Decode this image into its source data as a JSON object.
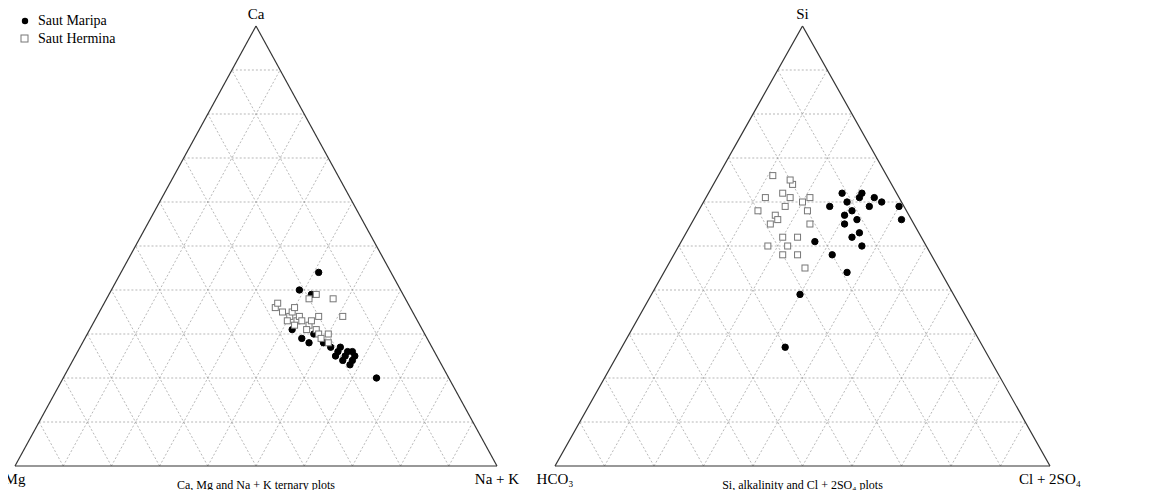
{
  "chart_data": [
    {
      "type": "ternary",
      "title": "Ca, Mg and Na + K ternary plots",
      "vertices": [
        "Ca",
        "Mg",
        "Na + K"
      ],
      "ticks": [
        0,
        10,
        20,
        30,
        40,
        50,
        60,
        70,
        80,
        90,
        100
      ],
      "grid": true,
      "tick_labels": false,
      "legend": "upper left",
      "series": [
        {
          "name": "Saut Maripa",
          "color": "#000000",
          "marker": "circle",
          "values": [
            [
              26,
              18,
              56
            ],
            [
              25,
              19,
              56
            ],
            [
              26,
              20,
              54
            ],
            [
              27,
              21,
              52
            ],
            [
              28,
              22,
              50
            ],
            [
              28,
              25,
              47
            ],
            [
              29,
              26,
              45
            ],
            [
              31,
              27,
              42
            ],
            [
              20,
              15,
              65
            ],
            [
              44,
              15,
              41
            ],
            [
              40,
              21,
              39
            ],
            [
              39,
              19,
              42
            ],
            [
              24,
              20,
              56
            ],
            [
              25,
              21,
              54
            ],
            [
              27,
              19,
              54
            ],
            [
              23,
              19,
              58
            ],
            [
              26,
              17,
              57
            ],
            [
              30,
              23,
              47
            ],
            [
              24,
              18,
              58
            ],
            [
              25,
              17,
              58
            ]
          ]
        },
        {
          "name": "Saut Hermina",
          "color": "#ffffff",
          "marker": "square",
          "values": [
            [
              34,
              26,
              40
            ],
            [
              33,
              25,
              42
            ],
            [
              32,
              23,
              45
            ],
            [
              35,
              27,
              38
            ],
            [
              36,
              28,
              36
            ],
            [
              34,
              24,
              42
            ],
            [
              33,
              22,
              45
            ],
            [
              31,
              22,
              47
            ],
            [
              30,
              22,
              48
            ],
            [
              32,
              26,
              42
            ],
            [
              35,
              25,
              40
            ],
            [
              37,
              27,
              36
            ],
            [
              31,
              24,
              45
            ],
            [
              29,
              22,
              49
            ],
            [
              33,
              27,
              40
            ],
            [
              36,
              24,
              40
            ],
            [
              38,
              20,
              42
            ],
            [
              39,
              18,
              43
            ],
            [
              34,
              20,
              46
            ],
            [
              30,
              20,
              50
            ],
            [
              28,
              21,
              51
            ],
            [
              33,
              24,
              43
            ],
            [
              38,
              15,
              47
            ],
            [
              34,
              15,
              51
            ]
          ]
        }
      ]
    },
    {
      "type": "ternary",
      "title": "Si, alkalinity and Cl + 2SO₄ plots",
      "vertices": [
        "Si",
        "HCO₃",
        "Cl + 2SO₄"
      ],
      "ticks": [
        0,
        10,
        20,
        30,
        40,
        50,
        60,
        70,
        80,
        90,
        100
      ],
      "grid": true,
      "tick_labels": false,
      "series": [
        {
          "name": "Saut Maripa",
          "color": "#000000",
          "marker": "circle",
          "values": [
            [
              58,
              11,
              31
            ],
            [
              57,
              13,
              30
            ],
            [
              55,
              14,
              31
            ],
            [
              56,
              11,
              33
            ],
            [
              52,
              14,
              34
            ],
            [
              53,
              12,
              35
            ],
            [
              60,
              11,
              29
            ],
            [
              62,
              11,
              27
            ],
            [
              61,
              8,
              31
            ],
            [
              59,
              7,
              34
            ],
            [
              60,
              4,
              36
            ],
            [
              59,
              1,
              40
            ],
            [
              56,
              2,
              42
            ],
            [
              50,
              13,
              37
            ],
            [
              48,
              20,
              32
            ],
            [
              44,
              19,
              37
            ],
            [
              51,
              22,
              27
            ],
            [
              39,
              31,
              30
            ],
            [
              27,
              40,
              33
            ],
            [
              62,
              7,
              31
            ],
            [
              61,
              5,
              34
            ],
            [
              59,
              15,
              26
            ]
          ]
        },
        {
          "name": "Saut Hermina",
          "color": "#ffffff",
          "marker": "square",
          "values": [
            [
              62,
              23,
              15
            ],
            [
              61,
              22,
              17
            ],
            [
              59,
              24,
              17
            ],
            [
              64,
              20,
              16
            ],
            [
              60,
              20,
              20
            ],
            [
              57,
              27,
              16
            ],
            [
              55,
              29,
              16
            ],
            [
              52,
              28,
              20
            ],
            [
              50,
              28,
              22
            ],
            [
              58,
              20,
              22
            ],
            [
              61,
              18,
              21
            ],
            [
              61,
              27,
              12
            ],
            [
              66,
              23,
              11
            ],
            [
              65,
              20,
              15
            ],
            [
              48,
              27,
              25
            ],
            [
              52,
              25,
              23
            ],
            [
              55,
              21,
              24
            ],
            [
              50,
              32,
              18
            ],
            [
              48,
              30,
              22
            ],
            [
              45,
              27,
              28
            ],
            [
              56,
              27,
              17
            ],
            [
              58,
              30,
              12
            ]
          ]
        }
      ]
    }
  ]
}
